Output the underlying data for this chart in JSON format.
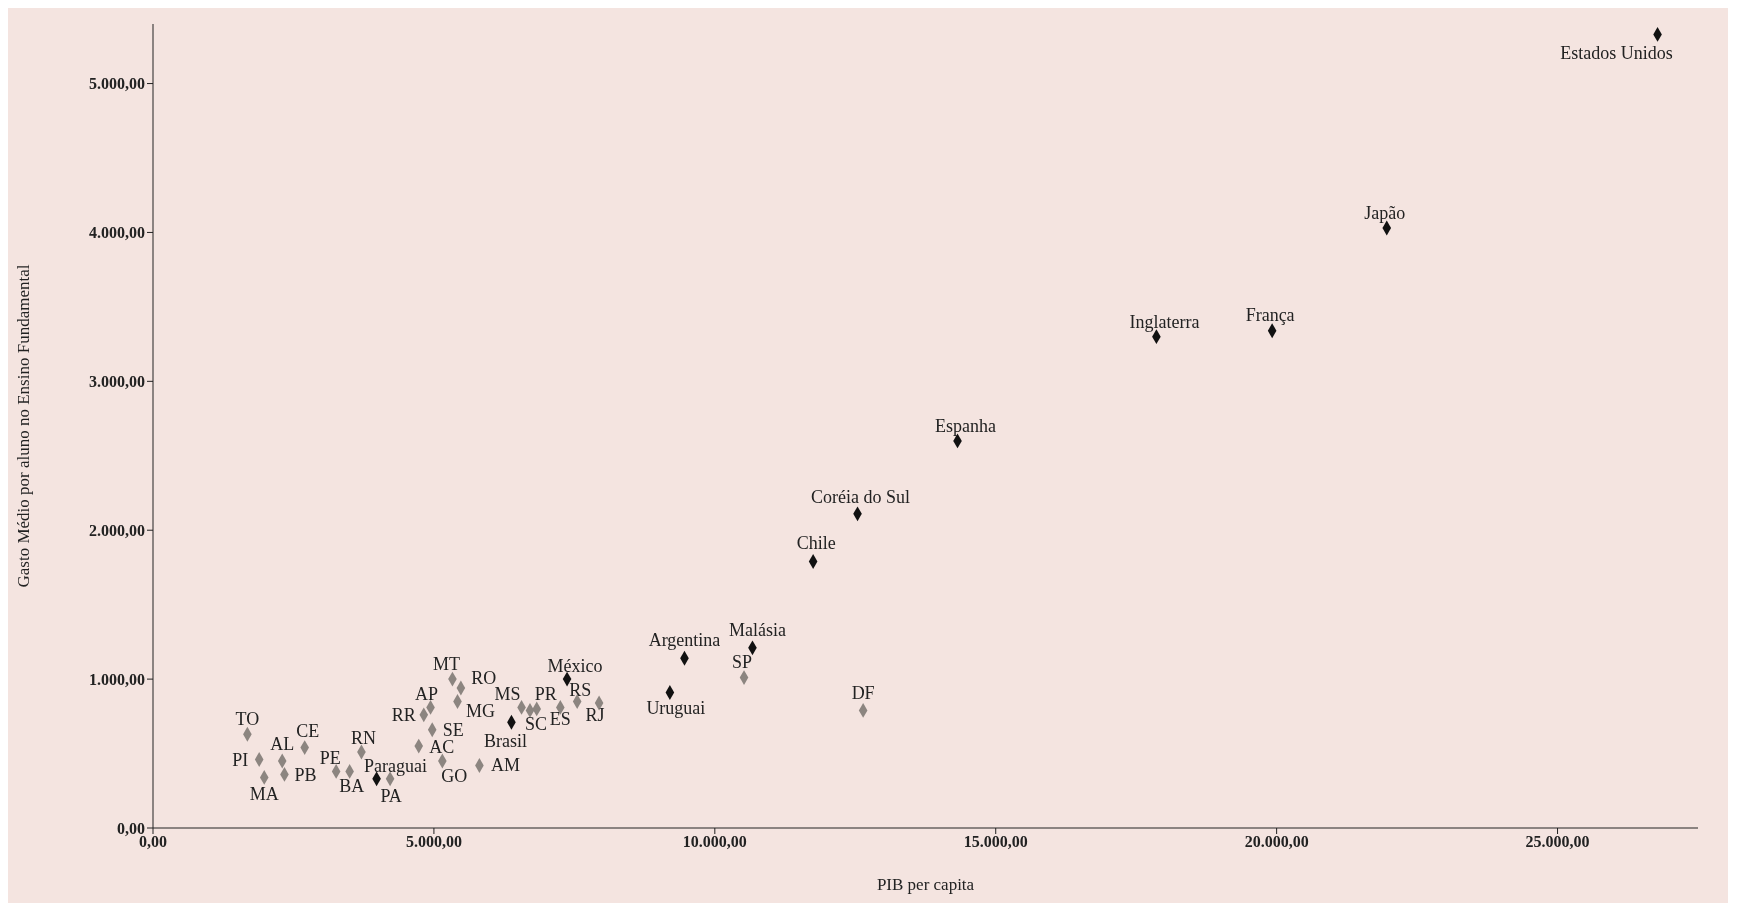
{
  "chart_data": {
    "type": "scatter",
    "xlabel": "PIB per capita",
    "ylabel": "Gasto Médio por aluno no Ensino Fundamental",
    "marker": "diamond",
    "xlim": [
      0,
      27500
    ],
    "ylim": [
      0,
      5400
    ],
    "xticks": [
      {
        "value": 0,
        "label": "0,00"
      },
      {
        "value": 5000,
        "label": "5.000,00"
      },
      {
        "value": 10000,
        "label": "10.000,00"
      },
      {
        "value": 15000,
        "label": "15.000,00"
      },
      {
        "value": 20000,
        "label": "20.000,00"
      },
      {
        "value": 25000,
        "label": "25.000,00"
      }
    ],
    "yticks": [
      {
        "value": 0,
        "label": "0,00"
      },
      {
        "value": 1000,
        "label": "1.000,00"
      },
      {
        "value": 2000,
        "label": "2.000,00"
      },
      {
        "value": 3000,
        "label": "3.000,00"
      },
      {
        "value": 4000,
        "label": "4.000,00"
      },
      {
        "value": 5000,
        "label": "5.000,00"
      }
    ],
    "series": [
      {
        "color": "#111111",
        "x": [
          3980,
          6380,
          7370,
          9200,
          9460,
          10670,
          11750,
          12540,
          14320,
          17860,
          19920,
          21960,
          26780
        ],
        "values": [
          330,
          710,
          1000,
          910,
          1140,
          1210,
          1790,
          2110,
          2600,
          3300,
          3340,
          4030,
          5330
        ]
      },
      {
        "color": "#8c8580",
        "x": [
          1680,
          1890,
          1980,
          2300,
          2340,
          2700,
          3260,
          3500,
          3710,
          4220,
          4820,
          4940,
          4730,
          4970,
          5150,
          5330,
          5480,
          5420,
          5810,
          6560,
          6710,
          6830,
          7250,
          7550,
          7940,
          10520,
          12640
        ],
        "values": [
          630,
          460,
          340,
          450,
          360,
          540,
          380,
          380,
          510,
          330,
          760,
          810,
          550,
          660,
          450,
          1000,
          940,
          850,
          420,
          810,
          790,
          800,
          810,
          850,
          840,
          1010,
          790
        ]
      }
    ],
    "annotations": [
      {
        "text": "Paraguai",
        "x": 3980,
        "y": 330
      },
      {
        "text": "Brasil",
        "x": 6380,
        "y": 710
      },
      {
        "text": "México",
        "x": 7370,
        "y": 1000
      },
      {
        "text": "Uruguai",
        "x": 9200,
        "y": 910
      },
      {
        "text": "Argentina",
        "x": 9460,
        "y": 1140
      },
      {
        "text": "Malásia",
        "x": 10670,
        "y": 1210
      },
      {
        "text": "Chile",
        "x": 11750,
        "y": 1790
      },
      {
        "text": "Coréia do Sul",
        "x": 12540,
        "y": 2110
      },
      {
        "text": "Espanha",
        "x": 14320,
        "y": 2600
      },
      {
        "text": "Inglaterra",
        "x": 17860,
        "y": 3300
      },
      {
        "text": "França",
        "x": 19920,
        "y": 3340
      },
      {
        "text": "Japão",
        "x": 21960,
        "y": 4030
      },
      {
        "text": "Estados Unidos",
        "x": 26780,
        "y": 5330
      },
      {
        "text": "TO",
        "x": 1680,
        "y": 630
      },
      {
        "text": "PI",
        "x": 1890,
        "y": 460
      },
      {
        "text": "MA",
        "x": 1980,
        "y": 340
      },
      {
        "text": "AL",
        "x": 2300,
        "y": 450
      },
      {
        "text": "PB",
        "x": 2340,
        "y": 360
      },
      {
        "text": "CE",
        "x": 2700,
        "y": 540
      },
      {
        "text": "PE",
        "x": 3260,
        "y": 380
      },
      {
        "text": "BA",
        "x": 3500,
        "y": 380
      },
      {
        "text": "RN",
        "x": 3710,
        "y": 510
      },
      {
        "text": "PA",
        "x": 4220,
        "y": 330
      },
      {
        "text": "RR",
        "x": 4820,
        "y": 760
      },
      {
        "text": "AP",
        "x": 4940,
        "y": 810
      },
      {
        "text": "AC",
        "x": 4730,
        "y": 550
      },
      {
        "text": "SE",
        "x": 4970,
        "y": 660
      },
      {
        "text": "GO",
        "x": 5150,
        "y": 450
      },
      {
        "text": "MT",
        "x": 5330,
        "y": 1000
      },
      {
        "text": "RO",
        "x": 5480,
        "y": 940
      },
      {
        "text": "MG",
        "x": 5420,
        "y": 850
      },
      {
        "text": "AM",
        "x": 5810,
        "y": 420
      },
      {
        "text": "MS",
        "x": 6560,
        "y": 810
      },
      {
        "text": "SC",
        "x": 6710,
        "y": 790
      },
      {
        "text": "PR",
        "x": 6830,
        "y": 800
      },
      {
        "text": "ES",
        "x": 7250,
        "y": 810
      },
      {
        "text": "RS",
        "x": 7550,
        "y": 850
      },
      {
        "text": "RJ",
        "x": 7940,
        "y": 840
      },
      {
        "text": "SP",
        "x": 10520,
        "y": 1010
      },
      {
        "text": "DF",
        "x": 12640,
        "y": 790
      }
    ]
  }
}
